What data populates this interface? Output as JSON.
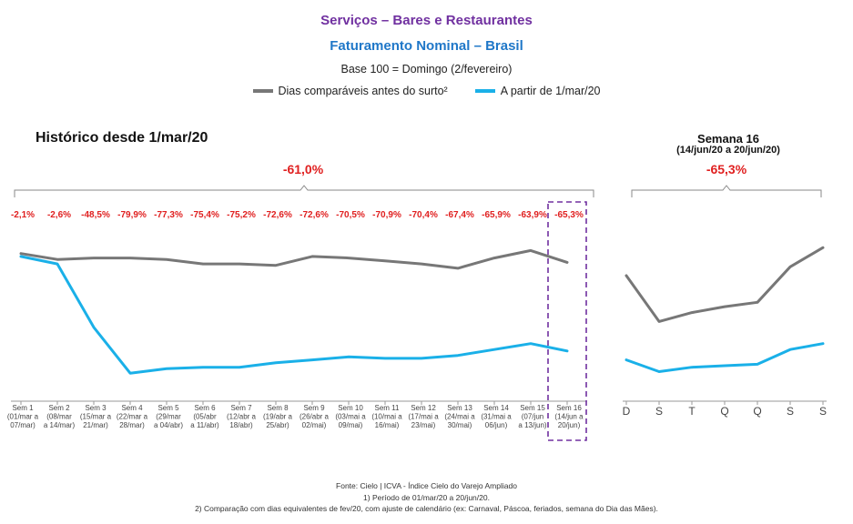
{
  "header": {
    "title": "Serviços – Bares e Restaurantes",
    "subtitle": "Faturamento Nominal – Brasil",
    "base": "Base 100 = Domingo (2/fevereiro)",
    "legend": [
      {
        "label": "Dias comparáveis antes do surto²",
        "color": "#777777"
      },
      {
        "label": "A partir de 1/mar/20",
        "color": "#1ab0e8"
      }
    ]
  },
  "chart_data": [
    {
      "type": "line",
      "title": "Histórico desde 1/mar/20",
      "total_change": "-61,0%",
      "categories": [
        [
          "Sem 1",
          "(01/mar a",
          "07/mar)"
        ],
        [
          "Sem 2",
          "(08/mar",
          "a 14/mar)"
        ],
        [
          "Sem 3",
          "(15/mar a",
          "21/mar)"
        ],
        [
          "Sem 4",
          "(22/mar a",
          "28/mar)"
        ],
        [
          "Sem 5",
          "(29/mar",
          "a 04/abr)"
        ],
        [
          "Sem 6",
          "(05/abr",
          "a 11/abr)"
        ],
        [
          "Sem 7",
          "(12/abr a",
          "18/abr)"
        ],
        [
          "Sem 8",
          "(19/abr a",
          "25/abr)"
        ],
        [
          "Sem 9",
          "(26/abr a",
          "02/mai)"
        ],
        [
          "Sem 10",
          "(03/mai a",
          "09/mai)"
        ],
        [
          "Sem 11",
          "(10/mai a",
          "16/mai)"
        ],
        [
          "Sem 12",
          "(17/mai a",
          "23/mai)"
        ],
        [
          "Sem 13",
          "(24/mai a",
          "30/mai)"
        ],
        [
          "Sem 14",
          "(31/mai a",
          "06/jun)"
        ],
        [
          "Sem 15",
          "(07/jun",
          "a 13/jun)"
        ],
        [
          "Sem 16",
          "(14/jun a",
          "20/jun)"
        ]
      ],
      "pct_labels": [
        "-2,1%",
        "-2,6%",
        "-48,5%",
        "-79,9%",
        "-77,3%",
        "-75,4%",
        "-75,2%",
        "-72,6%",
        "-72,6%",
        "-70,5%",
        "-70,9%",
        "-70,4%",
        "-67,4%",
        "-65,9%",
        "-63,9%",
        "-65,3%"
      ],
      "highlighted_category": "Sem 16",
      "ylim": [
        0,
        130
      ],
      "series": [
        {
          "name": "Dias comparáveis antes do surto²",
          "color": "#777777",
          "values": [
            100,
            96,
            97,
            97,
            96,
            93,
            93,
            92,
            98,
            97,
            95,
            93,
            90,
            97,
            102,
            94
          ]
        },
        {
          "name": "A partir de 1/mar/20",
          "color": "#1ab0e8",
          "values": [
            98,
            93,
            50,
            19,
            22,
            23,
            23,
            26,
            28,
            30,
            29,
            29,
            31,
            35,
            39,
            34
          ]
        }
      ]
    },
    {
      "type": "line",
      "title": "Semana 16",
      "subtitle": "(14/jun/20 a 20/jun/20)",
      "total_change": "-65,3%",
      "categories": [
        "D",
        "S",
        "T",
        "Q",
        "Q",
        "S",
        "S"
      ],
      "ylim": [
        0,
        130
      ],
      "series": [
        {
          "name": "Dias comparáveis antes do surto²",
          "color": "#777777",
          "values": [
            85,
            54,
            60,
            64,
            67,
            91,
            104
          ]
        },
        {
          "name": "A partir de 1/mar/20",
          "color": "#1ab0e8",
          "values": [
            28,
            20,
            23,
            24,
            25,
            35,
            39
          ]
        }
      ]
    }
  ],
  "footer": {
    "source": "Fonte: Cielo | ICVA - Índice Cielo do Varejo Ampliado",
    "note1": "1) Período de 01/mar/20 a 20/jun/20.",
    "note2": "2) Comparação com dias equivalentes de fev/20, com ajuste de calendário (ex: Carnaval, Páscoa, feriados, semana do Dia das Mães)."
  }
}
